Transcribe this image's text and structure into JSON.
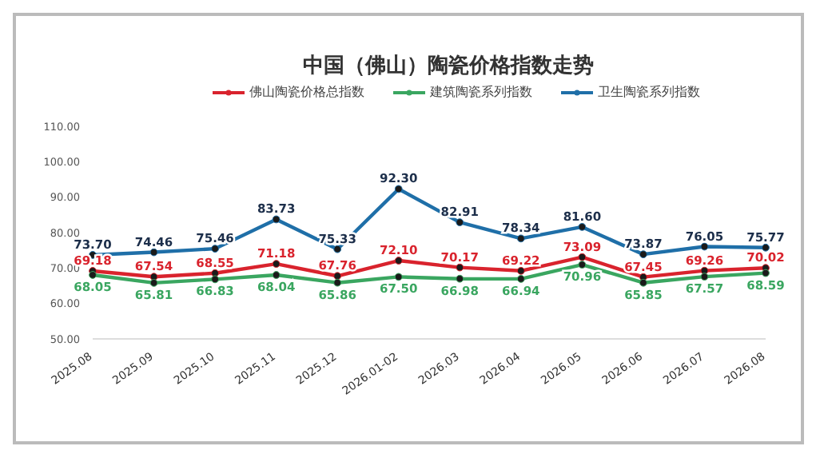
{
  "chart_data": {
    "type": "line",
    "title": "中国（佛山）陶瓷价格指数走势",
    "categories": [
      "2025.08",
      "2025.09",
      "2025.10",
      "2025.11",
      "2025.12",
      "2026.01-02",
      "2026.03",
      "2026.04",
      "2026.05",
      "2026.06",
      "2026.07",
      "2026.08"
    ],
    "series": [
      {
        "name": "佛山陶瓷价格总指数",
        "color": "#d9232d",
        "values": [
          69.18,
          67.54,
          68.55,
          71.18,
          67.76,
          72.1,
          70.17,
          69.22,
          73.09,
          67.45,
          69.26,
          70.02
        ],
        "value_labels": [
          "69.18",
          "67.54",
          "68.55",
          "71.18",
          "67.76",
          "72.10",
          "70.17",
          "69.22",
          "73.09",
          "67.45",
          "69.26",
          "70.02"
        ]
      },
      {
        "name": "建筑陶瓷系列指数",
        "color": "#3aa660",
        "values": [
          68.05,
          65.81,
          66.83,
          68.04,
          65.86,
          67.5,
          66.98,
          66.94,
          70.96,
          65.85,
          67.57,
          68.59
        ],
        "value_labels": [
          "68.05",
          "65.81",
          "66.83",
          "68.04",
          "65.86",
          "67.50",
          "66.98",
          "66.94",
          "70.96",
          "65.85",
          "67.57",
          "68.59"
        ]
      },
      {
        "name": "卫生陶瓷系列指数",
        "color": "#1f6fa8",
        "values": [
          73.7,
          74.46,
          75.46,
          83.73,
          75.33,
          92.3,
          82.91,
          78.34,
          81.6,
          73.87,
          76.05,
          75.77
        ],
        "value_labels": [
          "73.70",
          "74.46",
          "75.46",
          "83.73",
          "75.33",
          "92.30",
          "82.91",
          "78.34",
          "81.60",
          "73.87",
          "76.05",
          "75.77"
        ]
      }
    ],
    "ylim": [
      50,
      110
    ],
    "yticks": [
      {
        "value": 50,
        "label": "50.00"
      },
      {
        "value": 60,
        "label": "60.00"
      },
      {
        "value": 70,
        "label": "70.00"
      },
      {
        "value": 80,
        "label": "80.00"
      },
      {
        "value": 90,
        "label": "90.00"
      },
      {
        "value": 100,
        "label": "100.00"
      },
      {
        "value": 110,
        "label": "110.00"
      }
    ],
    "legend": "top",
    "marker": "circle",
    "line_style": "solid"
  }
}
